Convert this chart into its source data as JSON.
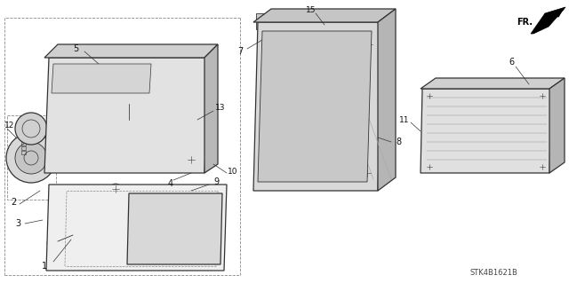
{
  "bg_color": "#ffffff",
  "line_color": "#333333",
  "label_color": "#111111",
  "diagram_code": "STK4B1621B",
  "fr_arrow_text": "FR."
}
